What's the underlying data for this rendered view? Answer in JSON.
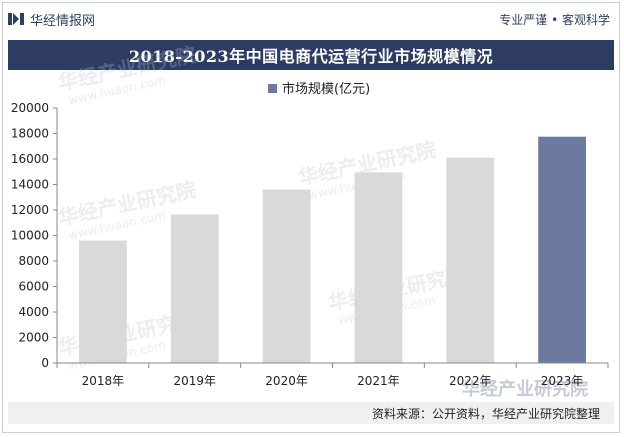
{
  "header": {
    "brand": "华经情报网",
    "slogan": "专业严谨 • 客观科学"
  },
  "title": "2018-2023年中国电商代运营行业市场规模情况",
  "source": "资料来源：公开资料，华经产业研究院整理",
  "watermark": {
    "cn": "华经产业研究院",
    "url": "www.huaon.com"
  },
  "colors": {
    "bar_default": "#d9d9d9",
    "bar_highlight": "#6c7aa0",
    "title_bg": "#2e3c63",
    "legend_marker": "#6c7aa0"
  },
  "chart_data": {
    "type": "bar",
    "title": "2018-2023年中国电商代运营行业市场规模情况",
    "categories": [
      "2018年",
      "2019年",
      "2020年",
      "2021年",
      "2022年",
      "2023年"
    ],
    "series": [
      {
        "name": "市场规模(亿元)",
        "values": [
          9600,
          11650,
          13600,
          14950,
          16100,
          17750
        ]
      }
    ],
    "highlight_index": 5,
    "xlabel": "",
    "ylabel": "",
    "ylim": [
      0,
      20000
    ],
    "yticks": [
      0,
      2000,
      4000,
      6000,
      8000,
      10000,
      12000,
      14000,
      16000,
      18000,
      20000
    ],
    "grid": false,
    "legend": "top-center"
  }
}
